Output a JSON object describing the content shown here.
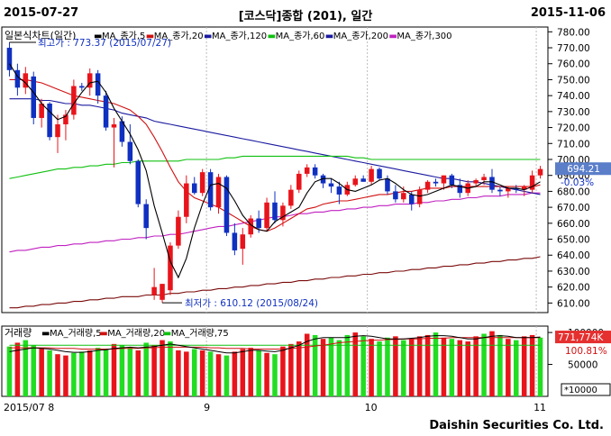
{
  "header": {
    "start_date": "2015-07-27",
    "title": "[코스닥]종합 (201), 일간",
    "end_date": "2015-11-06"
  },
  "footer": "Daishin Securities Co. Ltd.",
  "colors": {
    "up": "#e8141b",
    "down": "#1030c0",
    "ma5": "#000000",
    "ma20": "#d01010",
    "ma60": "#10c010",
    "ma120": "#1a1aa0",
    "ma300": "#c020c0",
    "ma_long": "#7a0a0a",
    "vol_up": "#e8141b",
    "vol_green": "#22dd22"
  },
  "chart_data": [
    {
      "type": "candlestick",
      "title": "일본식차트(일간)",
      "legend": [
        {
          "name": "MA_종가,5",
          "color": "#000000"
        },
        {
          "name": "MA_종가,20",
          "color": "#d01010"
        },
        {
          "name": "MA_종가,120",
          "color": "#1a1aa0"
        },
        {
          "name": "MA_종가,60",
          "color": "#10c010"
        },
        {
          "name": "MA_종가,200",
          "color": "#1a1aa0"
        },
        {
          "name": "MA_종가,300",
          "color": "#c020c0"
        }
      ],
      "yticks": [
        780.0,
        770.0,
        760.0,
        750.0,
        740.0,
        730.0,
        720.0,
        710.0,
        700.0,
        690.0,
        680.0,
        670.0,
        660.0,
        650.0,
        640.0,
        630.0,
        620.0,
        610.0
      ],
      "ylim": [
        604,
        783
      ],
      "x_month_labels": [
        {
          "label": "2015/07 8",
          "index": 0
        },
        {
          "label": "9",
          "index": 25
        },
        {
          "label": "10",
          "index": 45
        },
        {
          "label": "11",
          "index": 66
        }
      ],
      "current_price_label": "694.21",
      "change_label": "-0.03%",
      "max_annotation": "최고가 : 773.37 (2015/07/27)",
      "min_annotation": "최저가 : 610.12 (2015/08/24)",
      "candles": [
        [
          770,
          773.4,
          752,
          756
        ],
        [
          756,
          760,
          740,
          745
        ],
        [
          745,
          758,
          741,
          754
        ],
        [
          752,
          755,
          722,
          726
        ],
        [
          726,
          738,
          720,
          735
        ],
        [
          735,
          736,
          712,
          714
        ],
        [
          714,
          728,
          704,
          722
        ],
        [
          722,
          731,
          712,
          728
        ],
        [
          728,
          750,
          725,
          746
        ],
        [
          746,
          748,
          743,
          745
        ],
        [
          745,
          757,
          740,
          754
        ],
        [
          754,
          756,
          735,
          740
        ],
        [
          740,
          743,
          718,
          720
        ],
        [
          720,
          726,
          695,
          722
        ],
        [
          724,
          727,
          708,
          711
        ],
        [
          711,
          722,
          697,
          699
        ],
        [
          699,
          700,
          670,
          672
        ],
        [
          672,
          675,
          650,
          657
        ],
        [
          615,
          632,
          612,
          620
        ],
        [
          612,
          622,
          610.1,
          622
        ],
        [
          618,
          648,
          615,
          646
        ],
        [
          646,
          668,
          644,
          664
        ],
        [
          664,
          690,
          660,
          685
        ],
        [
          685,
          689,
          678,
          679
        ],
        [
          679,
          694,
          677,
          692
        ],
        [
          692,
          694,
          668,
          670
        ],
        [
          670,
          691,
          666,
          689
        ],
        [
          689,
          690,
          652,
          654
        ],
        [
          654,
          660,
          640,
          643
        ],
        [
          644,
          657,
          634,
          653
        ],
        [
          653,
          665,
          651,
          663
        ],
        [
          663,
          668,
          654,
          657
        ],
        [
          657,
          676,
          655,
          673
        ],
        [
          673,
          680,
          660,
          662
        ],
        [
          662,
          673,
          658,
          671
        ],
        [
          671,
          684,
          669,
          681
        ],
        [
          681,
          693,
          679,
          691
        ],
        [
          691,
          697,
          689,
          695
        ],
        [
          695,
          697,
          688,
          690
        ],
        [
          690,
          691,
          682,
          685
        ],
        [
          685,
          688,
          679,
          683
        ],
        [
          683,
          686,
          672,
          678
        ],
        [
          678,
          686,
          677,
          684
        ],
        [
          684,
          690,
          683,
          688
        ],
        [
          688,
          690,
          686,
          686
        ],
        [
          686,
          696,
          684,
          694
        ],
        [
          694,
          695,
          687,
          688
        ],
        [
          688,
          690,
          678,
          680
        ],
        [
          680,
          684,
          673,
          675
        ],
        [
          675,
          683,
          673,
          679
        ],
        [
          678,
          680,
          668,
          672
        ],
        [
          672,
          683,
          670,
          681
        ],
        [
          681,
          687,
          679,
          686
        ],
        [
          686,
          688,
          683,
          685
        ],
        [
          685,
          690,
          681,
          690
        ],
        [
          690,
          691,
          682,
          684
        ],
        [
          684,
          688,
          676,
          679
        ],
        [
          679,
          687,
          677,
          685
        ],
        [
          685,
          688,
          683,
          687
        ],
        [
          687,
          691,
          684,
          689
        ],
        [
          689,
          694,
          679,
          681
        ],
        [
          681,
          683,
          677,
          680
        ],
        [
          680,
          683,
          676,
          682
        ],
        [
          682,
          684,
          679,
          681
        ],
        [
          681,
          684,
          677,
          683
        ],
        [
          681,
          693,
          679,
          690
        ],
        [
          690,
          696,
          688,
          694
        ]
      ],
      "ma5": [
        760,
        752,
        748,
        742,
        735,
        730,
        725,
        727,
        735,
        742,
        748,
        749,
        742,
        732,
        724,
        716,
        706,
        693,
        671,
        654,
        636,
        626,
        638,
        657,
        672,
        684,
        685,
        682,
        674,
        665,
        659,
        656,
        655,
        661,
        664,
        667,
        670,
        679,
        686,
        688,
        688,
        685,
        681,
        680,
        682,
        684,
        687,
        688,
        685,
        681,
        678,
        677,
        678,
        680,
        682,
        684,
        683,
        682,
        683,
        686,
        686,
        684,
        682,
        682,
        681,
        683,
        686
      ],
      "ma20": [
        750,
        750,
        750,
        749,
        748,
        746,
        744,
        742,
        740,
        739,
        738,
        737,
        736,
        735,
        733,
        731,
        727,
        722,
        714,
        705,
        695,
        686,
        680,
        676,
        674,
        672,
        670,
        667,
        664,
        661,
        658,
        656,
        655,
        657,
        660,
        663,
        666,
        669,
        670,
        672,
        673,
        674,
        674,
        675,
        676,
        677,
        678,
        678,
        679,
        680,
        680,
        681,
        682,
        682,
        682,
        683,
        683,
        683,
        683,
        683,
        683,
        683,
        683,
        683,
        683,
        683,
        684
      ],
      "ma60": [
        688,
        689,
        690,
        691,
        692,
        693,
        694,
        694,
        695,
        695,
        696,
        696,
        697,
        697,
        698,
        698,
        699,
        699,
        699,
        699,
        699,
        699,
        700,
        700,
        700,
        700,
        700,
        701,
        701,
        702,
        702,
        702,
        702,
        702,
        702,
        702,
        702,
        702,
        702,
        702,
        702,
        702,
        702,
        701,
        701,
        700,
        700,
        700,
        700,
        700,
        700,
        700,
        700,
        700,
        700,
        700,
        700,
        700,
        700,
        700,
        700,
        700,
        700,
        700,
        700,
        700,
        700
      ],
      "ma120": [
        738,
        738,
        738,
        738,
        737,
        737,
        736,
        735,
        735,
        734,
        734,
        733,
        732,
        731,
        729,
        728,
        727,
        726,
        724,
        723,
        722,
        721,
        720,
        719,
        718,
        717,
        716,
        715,
        714,
        713,
        712,
        711,
        710,
        709,
        708,
        707,
        706,
        705,
        704,
        703,
        702,
        701,
        700,
        699,
        698,
        697,
        696,
        695,
        694,
        693,
        692,
        691,
        690,
        689,
        688,
        688,
        687,
        686,
        686,
        685,
        684,
        683,
        682,
        681,
        680,
        679,
        678
      ],
      "ma300": [
        642,
        643,
        643,
        644,
        645,
        645,
        646,
        646,
        647,
        647,
        648,
        648,
        649,
        649,
        650,
        650,
        651,
        651,
        652,
        652,
        653,
        653,
        654,
        655,
        656,
        657,
        658,
        658,
        659,
        660,
        661,
        662,
        663,
        664,
        664,
        665,
        666,
        666,
        667,
        667,
        668,
        668,
        669,
        669,
        670,
        670,
        671,
        671,
        672,
        672,
        672,
        673,
        673,
        674,
        674,
        675,
        675,
        676,
        676,
        677,
        677,
        677,
        678,
        678,
        678,
        679,
        679
      ],
      "ma_long": [
        607,
        607,
        608,
        608,
        609,
        609,
        610,
        610,
        611,
        611,
        612,
        612,
        613,
        613,
        614,
        614,
        614,
        615,
        615,
        615,
        616,
        616,
        617,
        617,
        618,
        618,
        619,
        619,
        620,
        620,
        621,
        621,
        622,
        622,
        623,
        623,
        624,
        624,
        625,
        625,
        626,
        626,
        627,
        627,
        628,
        628,
        629,
        629,
        630,
        630,
        631,
        631,
        632,
        632,
        633,
        633,
        634,
        634,
        635,
        635,
        636,
        636,
        637,
        637,
        638,
        638,
        639
      ]
    },
    {
      "type": "bar",
      "title": "거래량",
      "legend": [
        {
          "name": "MA_거래량,5",
          "color": "#000000"
        },
        {
          "name": "MA_거래량,20",
          "color": "#d01010"
        },
        {
          "name": "MA_거래량,75",
          "color": "#10c010"
        }
      ],
      "yticks_labels": [
        "100000",
        "50000",
        "*10000"
      ],
      "ylim": [
        0,
        110000
      ],
      "value_label": "771,774K",
      "percent_label": "100.81%",
      "values": [
        78000,
        84000,
        88000,
        80000,
        76000,
        72000,
        66000,
        64000,
        68000,
        70000,
        72000,
        76000,
        74000,
        82000,
        80000,
        76000,
        72000,
        84000,
        80000,
        88000,
        86000,
        72000,
        70000,
        74000,
        72000,
        70000,
        66000,
        64000,
        70000,
        74000,
        76000,
        72000,
        68000,
        66000,
        78000,
        82000,
        86000,
        98000,
        96000,
        90000,
        92000,
        88000,
        96000,
        100000,
        94000,
        90000,
        86000,
        92000,
        94000,
        88000,
        90000,
        94000,
        96000,
        100000,
        92000,
        90000,
        88000,
        86000,
        94000,
        98000,
        102000,
        96000,
        90000,
        88000,
        94000,
        96000,
        92000
      ],
      "colors": [
        "g",
        "r",
        "g",
        "g",
        "r",
        "g",
        "r",
        "r",
        "g",
        "g",
        "r",
        "g",
        "g",
        "r",
        "g",
        "g",
        "r",
        "g",
        "r",
        "r",
        "g",
        "r",
        "r",
        "g",
        "r",
        "g",
        "r",
        "g",
        "r",
        "r",
        "r",
        "g",
        "r",
        "g",
        "r",
        "r",
        "r",
        "r",
        "g",
        "r",
        "g",
        "g",
        "g",
        "r",
        "g",
        "r",
        "g",
        "g",
        "r",
        "g",
        "r",
        "r",
        "r",
        "g",
        "r",
        "g",
        "r",
        "r",
        "r",
        "g",
        "r",
        "g",
        "r",
        "g",
        "r",
        "r",
        "g"
      ],
      "ma5": [
        70000,
        72000,
        74000,
        76000,
        75000,
        74000,
        72000,
        70000,
        69000,
        69000,
        70000,
        72000,
        73000,
        75000,
        76000,
        77000,
        76000,
        77000,
        78000,
        80000,
        82000,
        80000,
        78000,
        76000,
        74000,
        72000,
        70000,
        68000,
        68000,
        70000,
        72000,
        72000,
        71000,
        70000,
        72000,
        76000,
        80000,
        86000,
        90000,
        92000,
        92000,
        92000,
        92000,
        94000,
        95000,
        94000,
        92000,
        90000,
        90000,
        90000,
        91000,
        92000,
        94000,
        95000,
        95000,
        94000,
        92000,
        90000,
        90000,
        92000,
        94000,
        95000,
        94000,
        92000,
        92000,
        92000,
        93000
      ],
      "ma20": [
        76000,
        76000,
        76000,
        76000,
        76000,
        76000,
        75000,
        75000,
        75000,
        74000,
        74000,
        74000,
        74000,
        74000,
        75000,
        75000,
        75000,
        76000,
        76000,
        77000,
        77000,
        77000,
        77000,
        77000,
        77000,
        76000,
        76000,
        75000,
        75000,
        75000,
        74000,
        74000,
        74000,
        74000,
        74000,
        75000,
        76000,
        77000,
        79000,
        80000,
        82000,
        84000,
        85000,
        86000,
        87000,
        88000,
        88000,
        89000,
        89000,
        90000,
        90000,
        90000,
        91000,
        91000,
        91000,
        92000,
        92000,
        92000,
        92000,
        92000,
        92000,
        92000,
        92000,
        92000,
        92000,
        92000,
        92000
      ],
      "ma75": [
        80000,
        80000,
        80000,
        80000,
        80000,
        80000,
        80000,
        80000,
        80000,
        80000,
        80000,
        80000,
        80000,
        80000,
        80000,
        80000,
        80000,
        80000,
        80000,
        80000,
        80000,
        80000,
        80000,
        80000,
        80000,
        80000,
        80000,
        80000,
        80000,
        80000,
        80000,
        80000,
        80000,
        80000,
        80000,
        80000,
        80000,
        80000,
        80000,
        80000,
        80000,
        80000,
        80000,
        80000,
        80000,
        80000,
        80000,
        80000,
        80000,
        80000,
        80000,
        80000,
        80000,
        80000,
        80000,
        80000,
        80000,
        80000,
        80000,
        80000,
        80000,
        80000,
        80000,
        80000,
        80000,
        80000,
        80000
      ]
    }
  ]
}
